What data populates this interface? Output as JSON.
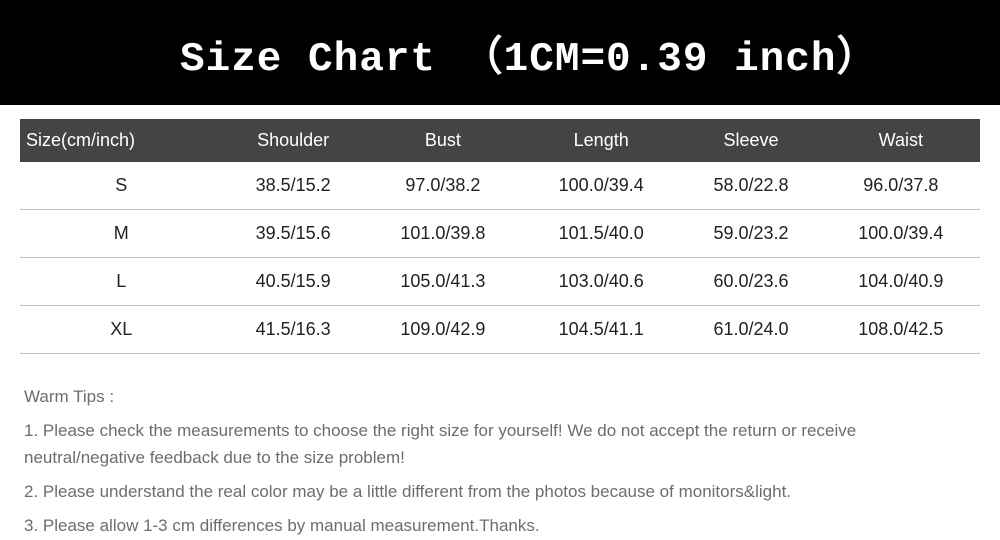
{
  "title": "Size Chart （1CM=0.39 inch）",
  "table": {
    "background_header": "#444444",
    "header_text_color": "#ffffff",
    "row_border_color": "#bfbfbf",
    "cell_text_color": "#222222",
    "font_size_header": 18,
    "font_size_cell": 18,
    "columns": [
      "Size(cm/inch)",
      "Shoulder",
      "Bust",
      "Length",
      "Sleeve",
      "Waist"
    ],
    "rows": [
      {
        "size": "S",
        "shoulder": "38.5/15.2",
        "bust": "97.0/38.2",
        "length": "100.0/39.4",
        "sleeve": "58.0/22.8",
        "waist": "96.0/37.8"
      },
      {
        "size": "M",
        "shoulder": "39.5/15.6",
        "bust": "101.0/39.8",
        "length": "101.5/40.0",
        "sleeve": "59.0/23.2",
        "waist": "100.0/39.4"
      },
      {
        "size": "L",
        "shoulder": "40.5/15.9",
        "bust": "105.0/41.3",
        "length": "103.0/40.6",
        "sleeve": "60.0/23.6",
        "waist": "104.0/40.9"
      },
      {
        "size": "XL",
        "shoulder": "41.5/16.3",
        "bust": "109.0/42.9",
        "length": "104.5/41.1",
        "sleeve": "61.0/24.0",
        "waist": "108.0/42.5"
      }
    ]
  },
  "tips": {
    "title": "Warm Tips :",
    "text_color": "#6d6d6d",
    "font_size": 17,
    "items": [
      "1. Please check the measurements to choose the right size for yourself! We do not accept the return or receive neutral/negative feedback due to the size problem!",
      "2. Please understand the real color may be a little different from the photos because of monitors&light.",
      "3. Please allow 1-3 cm differences by manual measurement.Thanks."
    ]
  },
  "title_style": {
    "background": "#000000",
    "text_color": "#ffffff",
    "font_family": "Courier New",
    "font_size": 41,
    "font_weight": "bold"
  }
}
